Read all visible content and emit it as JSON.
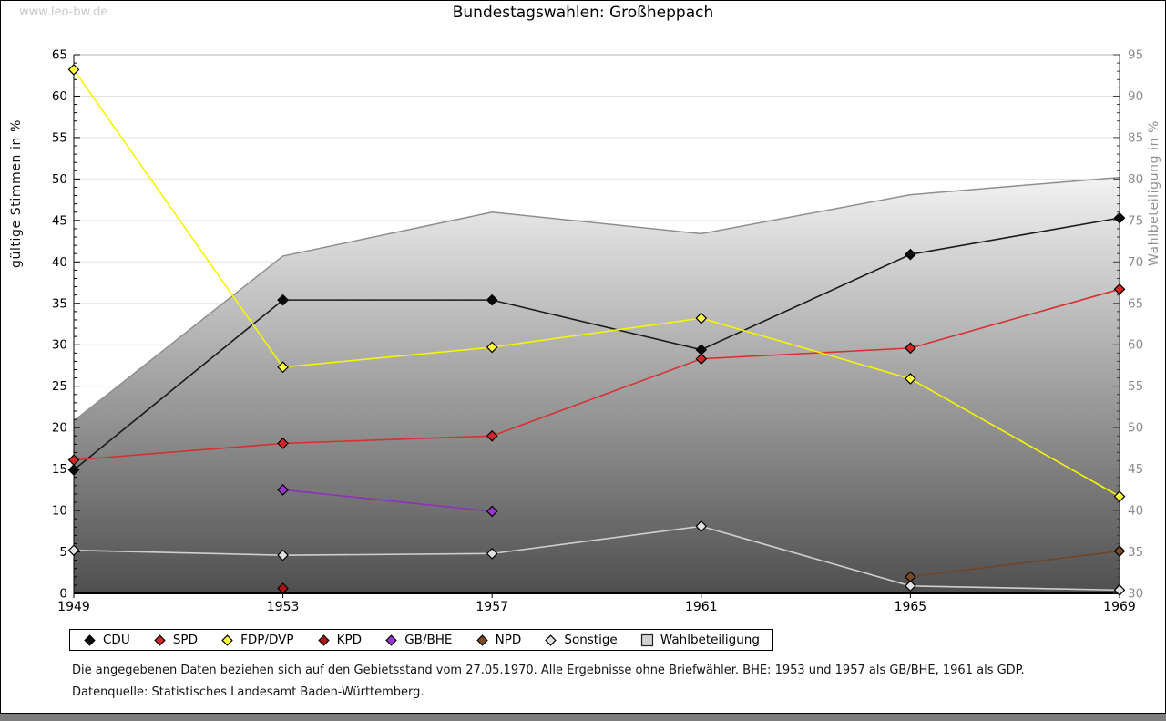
{
  "watermark": "www.leo-bw.de",
  "footnotes": [
    "Die angegebenen Daten beziehen sich auf den Gebietsstand vom 27.05.1970. Alle Ergebnisse ohne Briefwähler. BHE: 1953 und 1957 als GB/BHE, 1961 als GDP.",
    "Datenquelle: Statistisches Landesamt Baden-Württemberg."
  ],
  "colors": {
    "grid": "#e2e2e2",
    "frame_top": "#b2b2b2",
    "frame_right": "#3a3a3a",
    "axis": "#000000",
    "right_labels": "#8c8c8c",
    "area_boundary": "#8f8f8f",
    "area_gradient_top": "#f2f2f2",
    "area_gradient_bottom": "#4f4f4f"
  },
  "chart_data": {
    "type": "line",
    "title": "Bundestagswahlen: Großheppach",
    "xlabel": "",
    "ylabel_left": "gültige Stimmen in %",
    "ylabel_right": "Wahlbeteiligung in %",
    "ylim_left": [
      0,
      65
    ],
    "ylim_right": [
      30,
      95
    ],
    "ytick_step": 5,
    "grid": "horizontal",
    "legend_position": "bottom",
    "x": [
      1949,
      1953,
      1957,
      1961,
      1965,
      1969
    ],
    "series": [
      {
        "name": "CDU",
        "axis": "left",
        "marker": "diamond",
        "color": "#0a0a0a",
        "line_color": "#1a1a1a",
        "values": [
          14.9,
          35.4,
          35.4,
          29.4,
          40.9,
          45.3
        ]
      },
      {
        "name": "SPD",
        "axis": "left",
        "marker": "diamond",
        "color": "#d32626",
        "line_color": "#d63030",
        "values": [
          16.1,
          18.1,
          19.0,
          28.3,
          29.6,
          36.7
        ]
      },
      {
        "name": "FDP/DVP",
        "axis": "left",
        "marker": "diamond",
        "color": "#ffff3d",
        "line_color": "#f6f600",
        "values": [
          63.2,
          27.3,
          29.7,
          33.2,
          25.9,
          11.7
        ]
      },
      {
        "name": "KPD",
        "axis": "left",
        "marker": "diamond",
        "color": "#ad1414",
        "line_color": "#ad1414",
        "values": [
          null,
          0.6,
          null,
          null,
          null,
          null
        ]
      },
      {
        "name": "GB/BHE",
        "axis": "left",
        "marker": "diamond",
        "color": "#9b35cf",
        "line_color": "#8d2fc0",
        "values": [
          null,
          12.5,
          9.9,
          null,
          null,
          null
        ]
      },
      {
        "name": "NPD",
        "axis": "left",
        "marker": "diamond",
        "color": "#7a4a28",
        "line_color": "#6f4526",
        "values": [
          null,
          null,
          null,
          null,
          2.0,
          5.1
        ]
      },
      {
        "name": "Sonstige",
        "axis": "left",
        "marker": "diamond",
        "color": "#e2e2e2",
        "line_color": "#cfcfcf",
        "values": [
          5.2,
          4.6,
          4.8,
          8.1,
          0.9,
          0.4
        ]
      },
      {
        "name": "Wahlbeteiligung",
        "axis": "right",
        "marker": "square",
        "color": "#d2d2d2",
        "type": "area",
        "values": [
          50.8,
          70.7,
          76.0,
          73.4,
          78.1,
          80.2
        ]
      }
    ]
  }
}
